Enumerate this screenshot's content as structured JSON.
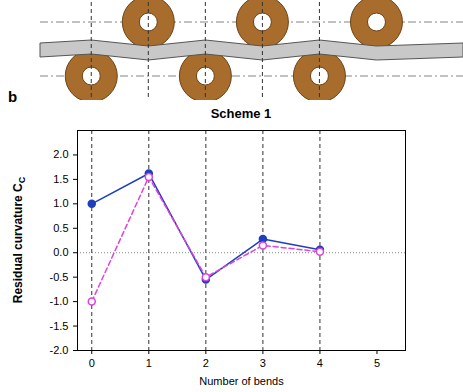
{
  "chart_data": {
    "type": "line",
    "panel_label": "b",
    "title": "Scheme 1",
    "x_label": "Number of bends",
    "y_label": "Residual curvature C",
    "y_label_subscript": "C",
    "xlim": [
      -0.25,
      5.5
    ],
    "xticks": [
      0,
      1,
      2,
      3,
      4,
      5
    ],
    "ylim": [
      -2.0,
      2.5
    ],
    "yticks": [
      {
        "value": -2,
        "label": "-2.0"
      },
      -1.5,
      {
        "value": -1,
        "label": "-1.0"
      },
      -0.5,
      {
        "value": 0,
        "label": "0.0"
      },
      0.5,
      {
        "value": 1,
        "label": "1.0"
      },
      1.5,
      {
        "value": 2,
        "label": "2.0"
      }
    ],
    "hline": 0,
    "grid": false,
    "series": [
      {
        "color": "#1f3fbf",
        "marker": "circle",
        "line_style": "solid",
        "x": [
          0,
          1,
          2,
          3,
          4
        ],
        "values": [
          1.0,
          1.62,
          -0.55,
          0.28,
          0.06
        ]
      },
      {
        "color": "#e040e0",
        "marker": "circle-open",
        "line_style": "dashed",
        "x": [
          0,
          1,
          2,
          3,
          4
        ],
        "values": [
          -1.0,
          1.55,
          -0.5,
          0.15,
          0.02
        ]
      }
    ]
  }
}
